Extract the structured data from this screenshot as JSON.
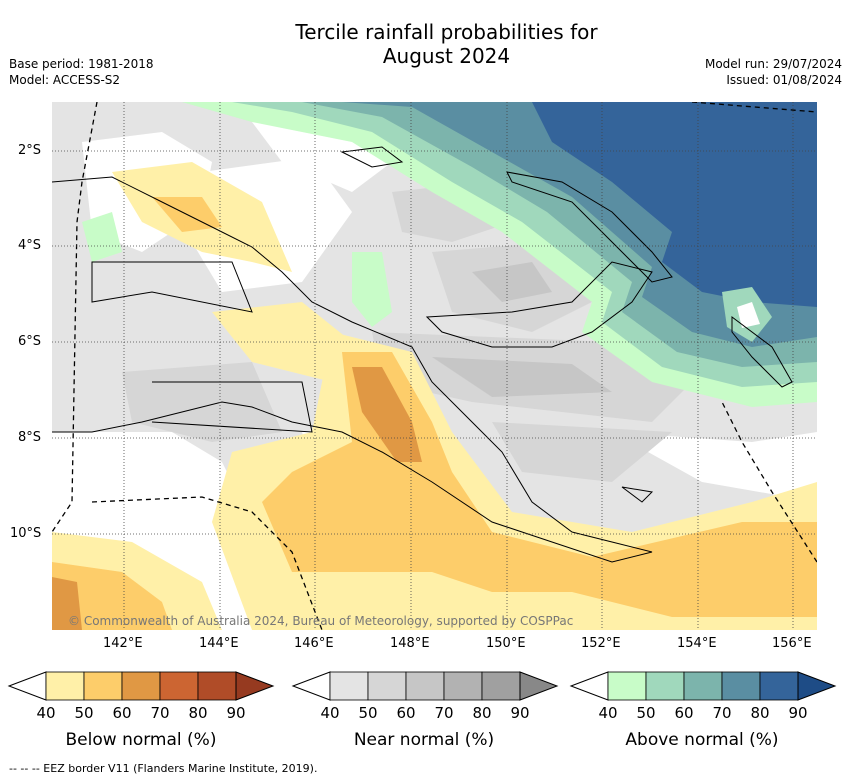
{
  "title_line1": "Tercile rainfall probabilities for",
  "title_line2": "August 2024",
  "base_period": "Base period: 1981-2018",
  "model": "Model: ACCESS-S2",
  "model_run": "Model run: 29/07/2024",
  "issued": "Issued: 01/08/2024",
  "copyright": "© Commonwealth of Australia 2024, Bureau of Meteorology, supported by COSPPac",
  "lat_labels": [
    "2°S",
    "4°S",
    "6°S",
    "8°S",
    "10°S"
  ],
  "lon_labels": [
    "142°E",
    "144°E",
    "146°E",
    "148°E",
    "150°E",
    "152°E",
    "154°E",
    "156°E"
  ],
  "colorbars": [
    {
      "label": "Below normal (%)",
      "ticks": [
        "40",
        "50",
        "60",
        "70",
        "80",
        "90"
      ],
      "colors": [
        "#fff0a8",
        "#fdcd6a",
        "#e09844",
        "#cc6532",
        "#b04c28",
        "#963a20"
      ]
    },
    {
      "label": "Near normal (%)",
      "ticks": [
        "40",
        "50",
        "60",
        "70",
        "80",
        "90"
      ],
      "colors": [
        "#e4e4e4",
        "#d6d6d6",
        "#c6c6c6",
        "#b2b2b2",
        "#a0a0a0",
        "#888888"
      ]
    },
    {
      "label": "Above normal (%)",
      "ticks": [
        "40",
        "50",
        "60",
        "70",
        "80",
        "90"
      ],
      "colors": [
        "#c8fcc8",
        "#a0d8bc",
        "#7cb4ac",
        "#5a8ea2",
        "#34649a",
        "#1e4c86"
      ]
    }
  ],
  "footer": "--  --  -- EEZ border V11 (Flanders Marine Institute, 2019)."
}
